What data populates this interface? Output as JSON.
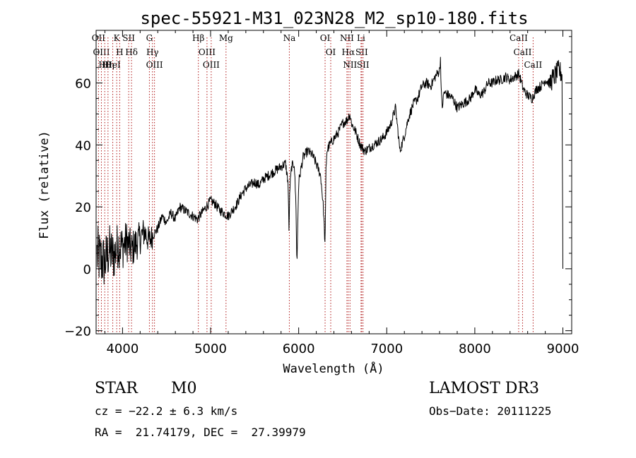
{
  "chart_data": {
    "type": "line",
    "title": "spec-55921-M31_023N28_M2_sp10-180.fits",
    "xlabel": "Wavelength (Å)",
    "ylabel": "Flux (relative)",
    "xlim": [
      3700,
      9100
    ],
    "ylim": [
      -21,
      77
    ],
    "xticks": [
      4000,
      5000,
      6000,
      7000,
      8000,
      9000
    ],
    "yticks": [
      -20,
      0,
      20,
      40,
      60
    ],
    "spectrum": {
      "name": "flux",
      "x": [
        3700,
        3750,
        3800,
        3850,
        3900,
        3950,
        4000,
        4050,
        4100,
        4150,
        4200,
        4250,
        4300,
        4350,
        4400,
        4450,
        4500,
        4550,
        4600,
        4650,
        4700,
        4750,
        4800,
        4850,
        4900,
        4950,
        5000,
        5050,
        5100,
        5150,
        5200,
        5250,
        5300,
        5350,
        5400,
        5450,
        5500,
        5550,
        5600,
        5650,
        5700,
        5750,
        5800,
        5850,
        5880,
        5890,
        5900,
        5920,
        5950,
        5970,
        5980,
        5990,
        6000,
        6050,
        6100,
        6150,
        6200,
        6250,
        6280,
        6300,
        6310,
        6320,
        6350,
        6400,
        6450,
        6500,
        6550,
        6580,
        6600,
        6650,
        6700,
        6750,
        6800,
        6850,
        6900,
        6950,
        7000,
        7050,
        7100,
        7150,
        7200,
        7250,
        7300,
        7350,
        7400,
        7450,
        7500,
        7550,
        7600,
        7610,
        7620,
        7630,
        7650,
        7700,
        7750,
        7800,
        7850,
        7900,
        7950,
        8000,
        8050,
        8100,
        8150,
        8200,
        8250,
        8300,
        8350,
        8400,
        8450,
        8500,
        8550,
        8600,
        8650,
        8700,
        8750,
        8800,
        8850,
        8900,
        8950,
        8990,
        9000
      ],
      "y": [
        5,
        3,
        2,
        6,
        4,
        8,
        7,
        9,
        6,
        8,
        10,
        12,
        9,
        11,
        13,
        17,
        15,
        18,
        16,
        20,
        19,
        18,
        17,
        16,
        18,
        20,
        22,
        21,
        19,
        18,
        17,
        19,
        21,
        24,
        26,
        27,
        28,
        27,
        29,
        30,
        31,
        32,
        33,
        34,
        28,
        12,
        26,
        33,
        34,
        20,
        0,
        15,
        28,
        36,
        38,
        37,
        34,
        30,
        20,
        7,
        32,
        38,
        40,
        42,
        44,
        47,
        48,
        50,
        47,
        44,
        40,
        38,
        39,
        40,
        41,
        42,
        44,
        47,
        52,
        38,
        43,
        49,
        53,
        55,
        59,
        60,
        59,
        62,
        64,
        68,
        56,
        52,
        57,
        56,
        55,
        52,
        53,
        54,
        55,
        58,
        56,
        57,
        60,
        60,
        61,
        61,
        62,
        61,
        62,
        63,
        58,
        56,
        55,
        58,
        59,
        61,
        60,
        62,
        64,
        63,
        0
      ],
      "noise_start": 3700,
      "noise_end": 4350
    },
    "line_markers": [
      {
        "label": "Hθ",
        "wavelength": 3798
      },
      {
        "label": "OII",
        "wavelength": 3727
      },
      {
        "label": "OIII",
        "wavelength": 3760
      },
      {
        "label": "Hη",
        "wavelength": 3835
      },
      {
        "label": "HeI",
        "wavelength": 3889
      },
      {
        "label": "K",
        "wavelength": 3934
      },
      {
        "label": "H",
        "wavelength": 3968
      },
      {
        "label": "SII",
        "wavelength": 4070
      },
      {
        "label": "Hδ",
        "wavelength": 4102
      },
      {
        "label": "G",
        "wavelength": 4305
      },
      {
        "label": "Hγ",
        "wavelength": 4340
      },
      {
        "label": "OIII",
        "wavelength": 4363
      },
      {
        "label": "Hβ",
        "wavelength": 4861
      },
      {
        "label": "OIII",
        "wavelength": 4959
      },
      {
        "label": "OIII",
        "wavelength": 5007
      },
      {
        "label": "Mg",
        "wavelength": 5175
      },
      {
        "label": "Na",
        "wavelength": 5894
      },
      {
        "label": "OI",
        "wavelength": 6300
      },
      {
        "label": "OI",
        "wavelength": 6364
      },
      {
        "label": "NII",
        "wavelength": 6548
      },
      {
        "label": "Hα",
        "wavelength": 6563
      },
      {
        "label": "NII",
        "wavelength": 6583
      },
      {
        "label": "Li",
        "wavelength": 6708
      },
      {
        "label": "SII",
        "wavelength": 6716
      },
      {
        "label": "SII",
        "wavelength": 6731
      },
      {
        "label": "CaII",
        "wavelength": 8498
      },
      {
        "label": "CaII",
        "wavelength": 8542
      },
      {
        "label": "CaII",
        "wavelength": 8662
      }
    ]
  },
  "info": {
    "class": "STAR",
    "subclass": "M0",
    "cz": "cz = −22.2 ± 6.3 km/s",
    "radec": "RA =  21.74179, DEC =  27.39979",
    "survey": "LAMOST DR3",
    "obsdate": "Obs−Date: 20111225"
  },
  "colors": {
    "marker": "#b01818",
    "axis": "#000000"
  }
}
